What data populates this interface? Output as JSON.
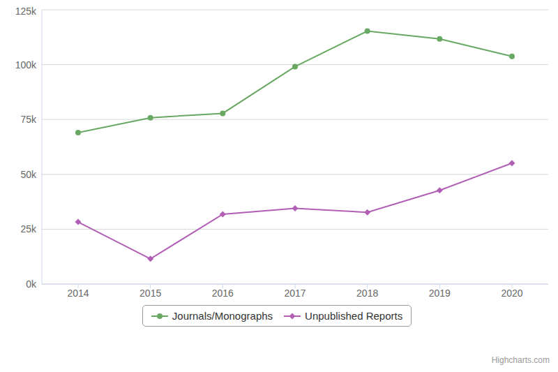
{
  "chart_data": {
    "type": "line",
    "categories": [
      "2014",
      "2015",
      "2016",
      "2017",
      "2018",
      "2019",
      "2020"
    ],
    "series": [
      {
        "name": "Journals/Monographs",
        "color": "#68a862",
        "marker": "circle",
        "values": [
          69000,
          75800,
          77800,
          99100,
          115300,
          111700,
          103800
        ]
      },
      {
        "name": "Unpublished Reports",
        "color": "#b05fb5",
        "marker": "diamond",
        "values": [
          28300,
          11500,
          31800,
          34500,
          32700,
          42700,
          55100
        ]
      }
    ],
    "ylim": [
      0,
      125000
    ],
    "yticks": [
      {
        "value": 0,
        "label": "0k"
      },
      {
        "value": 25000,
        "label": "25k"
      },
      {
        "value": 50000,
        "label": "50k"
      },
      {
        "value": 75000,
        "label": "75k"
      },
      {
        "value": 100000,
        "label": "100k"
      },
      {
        "value": 125000,
        "label": "125k"
      }
    ],
    "grid": true,
    "legend": "bottom",
    "credits": "Highcharts.com"
  }
}
